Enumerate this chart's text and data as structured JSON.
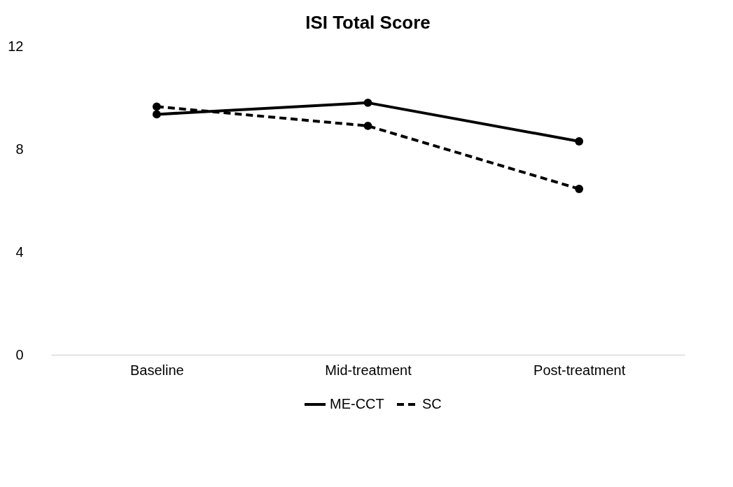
{
  "chart_data": {
    "type": "line",
    "title": "ISI Total Score",
    "categories": [
      "Baseline",
      "Mid-treatment",
      "Post-treatment"
    ],
    "series": [
      {
        "name": "ME-CCT",
        "color": "#000000",
        "line_style": "solid",
        "values": [
          9.35,
          9.8,
          8.3
        ]
      },
      {
        "name": "SC",
        "color": "#000000",
        "line_style": "dashed",
        "values": [
          9.65,
          8.9,
          6.45
        ]
      }
    ],
    "ylim": [
      0,
      12
    ],
    "yticks": [
      0,
      4,
      8,
      12
    ],
    "grid": false,
    "legend": "bottom",
    "marker": "circle"
  }
}
